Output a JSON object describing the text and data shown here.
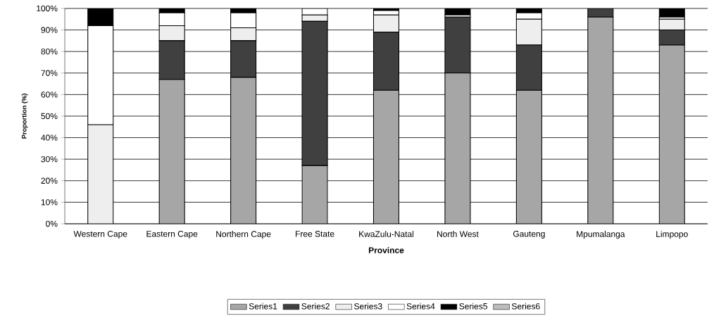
{
  "chart_data": {
    "type": "bar",
    "stacked": true,
    "xlabel": "Province",
    "ylabel": "Proportion (%)",
    "categories": [
      "Western Cape",
      "Eastern Cape",
      "Northern Cape",
      "Free State",
      "KwaZulu-Natal",
      "North West",
      "Gauteng",
      "Mpumalanga",
      "Limpopo"
    ],
    "series": [
      {
        "name": "Series1",
        "color": "#a6a6a6",
        "values": [
          0,
          67,
          68,
          27,
          62,
          70,
          62,
          96,
          83
        ]
      },
      {
        "name": "Series2",
        "color": "#404040",
        "values": [
          0,
          18,
          17,
          67,
          27,
          26,
          21,
          4,
          7
        ]
      },
      {
        "name": "Series3",
        "color": "#eeeeee",
        "values": [
          46,
          7,
          6,
          3,
          8,
          0,
          12,
          0,
          5
        ]
      },
      {
        "name": "Series4",
        "color": "#ffffff",
        "values": [
          46,
          6,
          7,
          3,
          2,
          1,
          3,
          0,
          1
        ]
      },
      {
        "name": "Series5",
        "color": "#000000",
        "values": [
          8,
          2,
          2,
          0,
          1,
          3,
          2,
          0,
          4
        ]
      },
      {
        "name": "Series6",
        "color": "#bdbdbd",
        "values": [
          0,
          0,
          0,
          0,
          0,
          0,
          0,
          0,
          0
        ]
      }
    ],
    "ylim": [
      0,
      100
    ],
    "yticks": [
      {
        "value": 0,
        "label": "0%"
      },
      {
        "value": 10,
        "label": "10%"
      },
      {
        "value": 20,
        "label": "20%"
      },
      {
        "value": 30,
        "label": "30%"
      },
      {
        "value": 40,
        "label": "40%"
      },
      {
        "value": 50,
        "label": "50%"
      },
      {
        "value": 60,
        "label": "60%"
      },
      {
        "value": 70,
        "label": "70%"
      },
      {
        "value": 80,
        "label": "80%"
      },
      {
        "value": 90,
        "label": "90%"
      },
      {
        "value": 100,
        "label": "100%"
      }
    ],
    "grid": "y",
    "legend": "bottom"
  }
}
